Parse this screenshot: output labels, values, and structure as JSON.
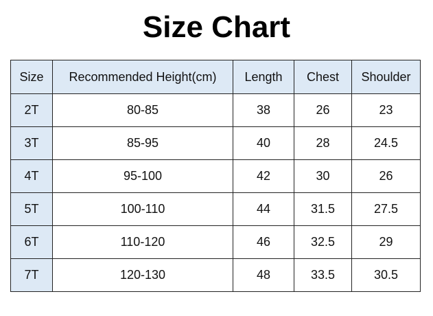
{
  "title": "Size Chart",
  "headers": [
    "Size",
    "Recommended Height(cm)",
    "Length",
    "Chest",
    "Shoulder"
  ],
  "rows": [
    [
      "2T",
      "80-85",
      "38",
      "26",
      "23"
    ],
    [
      "3T",
      "85-95",
      "40",
      "28",
      "24.5"
    ],
    [
      "4T",
      "95-100",
      "42",
      "30",
      "26"
    ],
    [
      "5T",
      "100-110",
      "44",
      "31.5",
      "27.5"
    ],
    [
      "6T",
      "110-120",
      "46",
      "32.5",
      "29"
    ],
    [
      "7T",
      "120-130",
      "48",
      "33.5",
      "30.5"
    ]
  ],
  "colors": {
    "header_bg": "#dde9f5",
    "border": "#222222"
  }
}
